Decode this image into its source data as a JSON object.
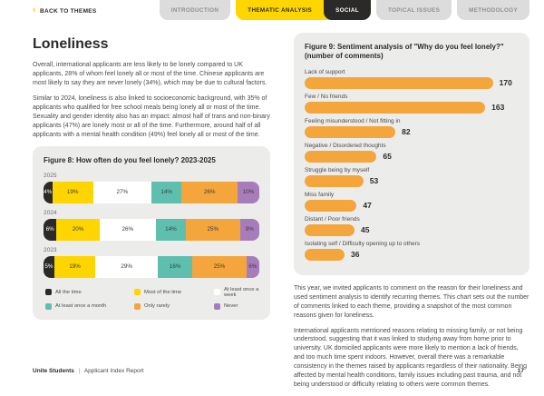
{
  "nav": {
    "back_label": "BACK TO THEMES",
    "back_icon": "chevron-left",
    "tabs": [
      {
        "label": "INTRODUCTION",
        "style": "gray"
      },
      {
        "label": "THEMATIC ANALYSIS",
        "style": "yellow"
      },
      {
        "label": "SOCIAL",
        "style": "black"
      },
      {
        "label": "TOPICAL ISSUES",
        "style": "gray"
      },
      {
        "label": "METHODOLOGY",
        "style": "gray"
      }
    ]
  },
  "page": {
    "title": "Loneliness",
    "paragraphs": [
      "Overall, international applicants are less likely to be lonely compared to UK applicants, 28% of whom feel lonely all or most of the time. Chinese applicants are most likely to say they are never lonely (34%), which may be due to cultural factors.",
      "Similar to 2024, loneliness is also linked to socioeconomic background, with 35% of applicants who qualified for free school meals being lonely all or most of the time. Sexuality and gender identity also has an impact: almost half of trans and non-binary applicants (47%) are lonely most or all of the time. Furthermore, around half of all applicants with a mental health condition (49%) feel lonely all or most of the time."
    ],
    "right_paragraphs": [
      "This year, we invited applicants to comment on the reason for their loneliness and used sentiment analysis to identify recurring themes. This chart sets out the number of comments linked to each theme, providing a snapshot of the most common reasons given for loneliness.",
      "International applicants mentioned reasons relating to missing family, or not being understood, suggesting that it was linked to studying away from home prior to university. UK domiciled applicants were more likely to mention a lack of friends, and too much time spent indoors. However, overall there was a remarkable consistency in the themes raised by applicants regardless of their nationality. Being affected by mental health conditions, family issues including past trauma, and not being understood or difficulty relating to others were common themes."
    ]
  },
  "colors": {
    "brand_yellow": "#ffd500",
    "brand_black": "#2b2a29",
    "card_gray": "#ececeb",
    "orange": "#f4a63d",
    "teal": "#5ebfae",
    "purple": "#a77cba",
    "white": "#ffffff"
  },
  "chart_data": [
    {
      "type": "bar",
      "stacked": true,
      "orientation": "horizontal",
      "title": "Figure 8: How often do you feel lonely? 2023-2025",
      "categories": [
        "2025",
        "2024",
        "2023"
      ],
      "unit": "%",
      "xlim": [
        0,
        100
      ],
      "legend_position": "bottom",
      "series": [
        {
          "name": "All the time",
          "color": "#2b2a29",
          "text": "#ffffff",
          "values": [
            4,
            6,
            5
          ]
        },
        {
          "name": "Most of the time",
          "color": "#ffd500",
          "text": "#3c3c3b",
          "values": [
            19,
            20,
            19
          ]
        },
        {
          "name": "At least once a week",
          "color": "#ffffff",
          "text": "#3c3c3b",
          "values": [
            27,
            26,
            29
          ]
        },
        {
          "name": "At least once a month",
          "color": "#5ebfae",
          "text": "#3c3c3b",
          "values": [
            14,
            14,
            16
          ]
        },
        {
          "name": "Only rarely",
          "color": "#f4a63d",
          "text": "#3c3c3b",
          "values": [
            26,
            25,
            25
          ]
        },
        {
          "name": "Never",
          "color": "#a77cba",
          "text": "#3c3c3b",
          "values": [
            10,
            9,
            6
          ]
        }
      ]
    },
    {
      "type": "bar",
      "orientation": "horizontal",
      "title": "Figure 9: Sentiment analysis of \"Why do you feel lonely?\" (number of comments)",
      "title_lines": [
        "Figure 9: Sentiment analysis of \"Why do you feel lonely?\"",
        "(number of comments)"
      ],
      "categories": [
        "Lack of support",
        "Few / No friends",
        "Feeling misunderstood / Not fitting in",
        "Negative / Disordered thoughts",
        "Struggle being by myself",
        "Miss family",
        "Distant / Poor friends",
        "Isolating self / Difficulty opening up to others"
      ],
      "values": [
        170,
        163,
        82,
        65,
        53,
        47,
        45,
        36
      ],
      "max_value": 170,
      "bar_color": "#f4a63d",
      "xlabel": "number of comments",
      "ylabel": ""
    }
  ],
  "footer": {
    "brand": "Unite Students",
    "separator": "|",
    "report": "Applicant Index Report",
    "page_number": "17"
  }
}
